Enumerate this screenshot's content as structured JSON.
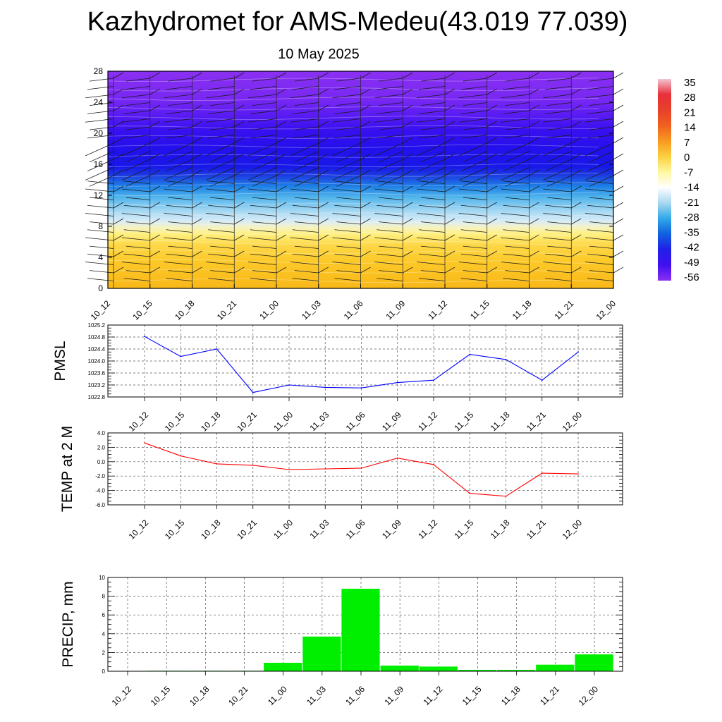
{
  "title": "Kazhydromet for AMS-Medeu(43.019 77.039)",
  "subtitle": "10 May 2025",
  "time_labels": [
    "10_12",
    "10_15",
    "10_18",
    "10_21",
    "11_00",
    "11_03",
    "11_06",
    "11_09",
    "11_12",
    "11_15",
    "11_18",
    "11_21",
    "12_00"
  ],
  "colorbar": {
    "labels": [
      "35",
      "28",
      "21",
      "14",
      "7",
      "0",
      "-7",
      "-14",
      "-21",
      "-28",
      "-35",
      "-42",
      "-49",
      "-56"
    ],
    "stops": [
      "#f2c4d0",
      "#e8303a",
      "#e8402a",
      "#f06020",
      "#f89a20",
      "#fcd040",
      "#fff8a0",
      "#ffffff",
      "#a8d8f0",
      "#30a8e8",
      "#1060e0",
      "#2020e8",
      "#4010f0",
      "#8a30f0"
    ]
  },
  "chart_data": [
    {
      "type": "heatmap",
      "name": "vertical cross-section",
      "yticks": [
        "0",
        "4",
        "8",
        "12",
        "16",
        "20",
        "24",
        "28"
      ],
      "ylim": [
        0,
        28
      ],
      "x": [
        "10_12",
        "10_15",
        "10_18",
        "10_21",
        "11_00",
        "11_03",
        "11_06",
        "11_09",
        "11_12",
        "11_15",
        "11_18",
        "11_21",
        "12_00"
      ]
    },
    {
      "type": "line",
      "ylabel": "PMSL",
      "ylim": [
        1022.8,
        1025.2
      ],
      "yticks": [
        "1025.2",
        "1024.8",
        "1024.4",
        "1024.0",
        "1023.6",
        "1023.2",
        "1022.8"
      ],
      "color": "#0000ff",
      "categories": [
        "10_12",
        "10_15",
        "10_18",
        "10_21",
        "11_00",
        "11_03",
        "11_06",
        "11_09",
        "11_12",
        "11_15",
        "11_18",
        "11_21",
        "12_00"
      ],
      "values": [
        1024.82,
        1024.15,
        1024.4,
        1022.95,
        1023.2,
        1023.12,
        1023.1,
        1023.28,
        1023.36,
        1024.22,
        1024.05,
        1023.36,
        1024.3
      ]
    },
    {
      "type": "line",
      "ylabel": "TEMP at 2 M",
      "ylim": [
        -6,
        4
      ],
      "yticks": [
        "4.0",
        "2.0",
        "0.0",
        "-2.0",
        "-4.0",
        "-6.0"
      ],
      "color": "#ff0000",
      "categories": [
        "10_12",
        "10_15",
        "10_18",
        "10_21",
        "11_00",
        "11_03",
        "11_06",
        "11_09",
        "11_12",
        "11_15",
        "11_18",
        "11_21",
        "12_00"
      ],
      "values": [
        2.6,
        0.8,
        -0.3,
        -0.5,
        -1.1,
        -1.0,
        -0.9,
        0.5,
        -0.4,
        -4.4,
        -4.8,
        -1.6,
        -1.7
      ]
    },
    {
      "type": "bar",
      "ylabel": "PRECIP, mm",
      "ylim": [
        0,
        10
      ],
      "yticks": [
        "10",
        "8",
        "6",
        "4",
        "2",
        "0"
      ],
      "color": "#00ee00",
      "categories": [
        "10_12",
        "10_15",
        "10_18",
        "10_21",
        "11_00",
        "11_03",
        "11_06",
        "11_09",
        "11_12",
        "11_15",
        "11_18",
        "11_21",
        "12_00"
      ],
      "values": [
        0,
        0.05,
        0.05,
        0.05,
        0.9,
        3.7,
        8.8,
        0.6,
        0.5,
        0.15,
        0.15,
        0.7,
        1.8
      ]
    }
  ]
}
